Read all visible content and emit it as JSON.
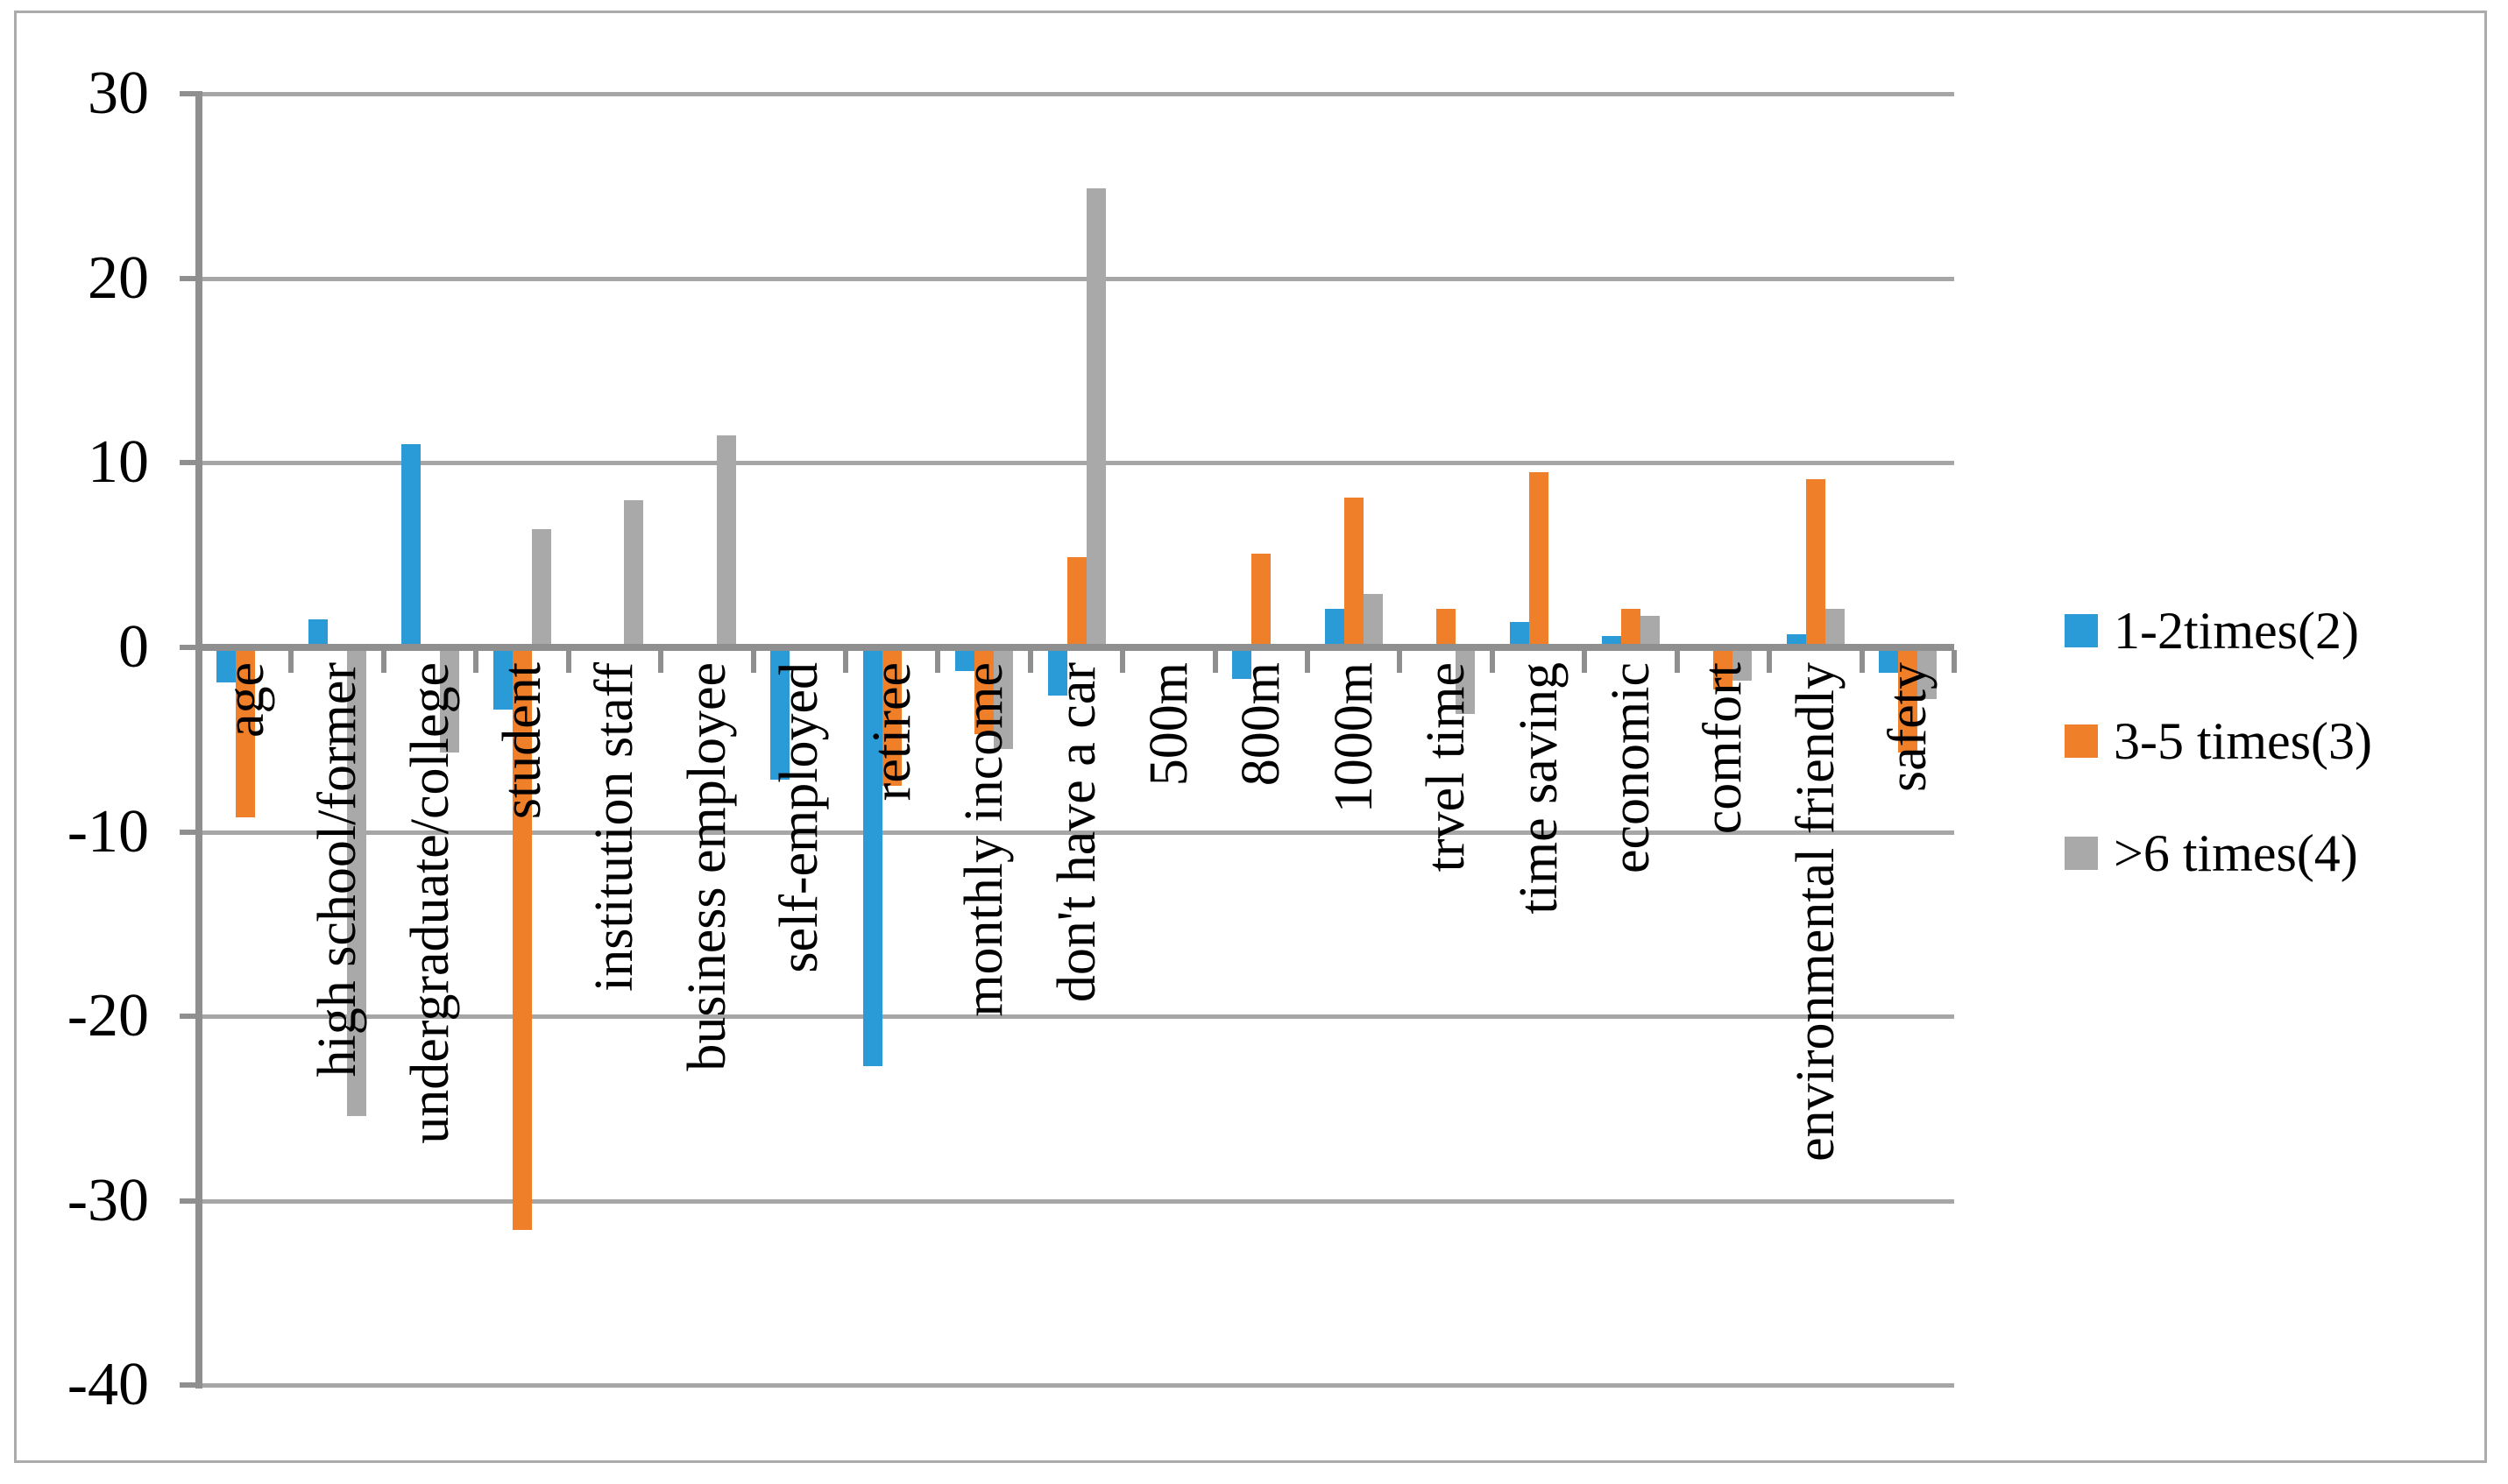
{
  "chart_data": {
    "type": "bar",
    "title": "",
    "xlabel": "",
    "ylabel": "",
    "grid": true,
    "legend_position": "right",
    "bar_orientation": "vertical",
    "ylim": [
      -40,
      30
    ],
    "yticks": [
      30,
      20,
      10,
      0,
      -10,
      -20,
      -30,
      -40
    ],
    "categories": [
      "age",
      "high school/former",
      "undergraduate/college",
      "student",
      "institution staff",
      "business employee",
      "self-employed",
      "retiree",
      "monthly income",
      "don't have a car",
      "500m",
      "800m",
      "1000m",
      "trvel time",
      "time saving",
      "economic",
      "comfort",
      "environmental friendly",
      "safety"
    ],
    "series": [
      {
        "name": "1-2times(2)",
        "color": "#2B9BD7",
        "values": [
          -1.7,
          1.5,
          11,
          -3.2,
          0,
          0,
          -7,
          -22.5,
          -1.1,
          -2.4,
          0,
          -1.5,
          2.1,
          0,
          1.4,
          0.6,
          0,
          0.7,
          -1.2
        ]
      },
      {
        "name": "3-5 times(3)",
        "color": "#F07F2A",
        "values": [
          -9,
          0,
          0,
          -31.4,
          0,
          0,
          0,
          -7.3,
          -4.5,
          4.9,
          0,
          5.1,
          8.1,
          2.1,
          9.5,
          2.1,
          -2.1,
          9.1,
          -5.5
        ]
      },
      {
        "name": ">6 times(4)",
        "color": "#A9A9A9",
        "values": [
          0,
          -25.2,
          -5.5,
          6.4,
          8,
          11.5,
          0,
          0,
          -5.3,
          24.9,
          0,
          0,
          2.9,
          -3.4,
          0,
          1.7,
          -1.6,
          2.1,
          -2.6
        ]
      }
    ]
  }
}
